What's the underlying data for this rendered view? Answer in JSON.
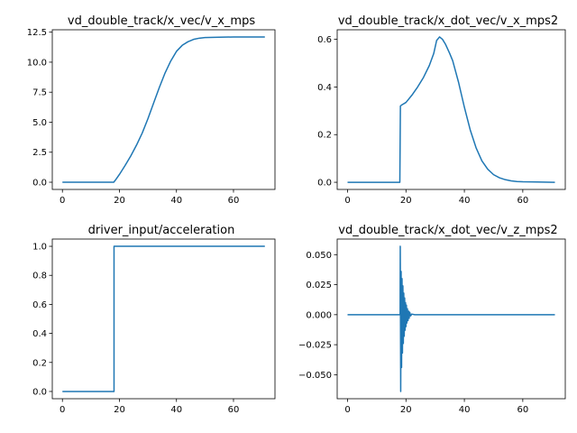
{
  "series_color": "#1f77b4",
  "chart_data": [
    {
      "type": "line",
      "title": "vd_double_track/x_vec/v_x_mps",
      "xlim": [
        -3.55,
        74.55
      ],
      "ylim": [
        -0.6,
        12.7
      ],
      "xticks": [
        0,
        20,
        40,
        60
      ],
      "xtick_labels": [
        "0",
        "20",
        "40",
        "60"
      ],
      "yticks": [
        0,
        2.5,
        5,
        7.5,
        10,
        12.5
      ],
      "ytick_labels": [
        "0.0",
        "2.5",
        "5.0",
        "7.5",
        "10.0",
        "12.5"
      ],
      "grid": false,
      "x": [
        0,
        18,
        18.5,
        20,
        22,
        24,
        26,
        28,
        30,
        32,
        34,
        36,
        38,
        40,
        42,
        44,
        46,
        48,
        50,
        55,
        60,
        65,
        71
      ],
      "values": [
        0,
        0,
        0.15,
        0.65,
        1.4,
        2.2,
        3.1,
        4.1,
        5.3,
        6.6,
        7.9,
        9.1,
        10.1,
        10.9,
        11.4,
        11.7,
        11.9,
        12.0,
        12.05,
        12.08,
        12.1,
        12.1,
        12.1
      ]
    },
    {
      "type": "line",
      "title": "vd_double_track/x_dot_vec/v_x_mps2",
      "xlim": [
        -3.55,
        74.55
      ],
      "ylim": [
        -0.03,
        0.64
      ],
      "xticks": [
        0,
        20,
        40,
        60
      ],
      "xtick_labels": [
        "0",
        "20",
        "40",
        "60"
      ],
      "yticks": [
        0,
        0.2,
        0.4,
        0.6
      ],
      "ytick_labels": [
        "0.0",
        "0.2",
        "0.4",
        "0.6"
      ],
      "grid": false,
      "x": [
        0,
        17.9,
        18.1,
        18.6,
        20,
        22,
        24,
        26,
        28,
        29.5,
        30.5,
        31.5,
        32.5,
        33.5,
        35,
        36,
        38,
        40,
        42,
        44,
        46,
        48,
        50,
        52,
        54,
        56,
        58,
        60,
        65,
        71
      ],
      "values": [
        0,
        0,
        0.32,
        0.325,
        0.335,
        0.365,
        0.4,
        0.44,
        0.49,
        0.54,
        0.595,
        0.61,
        0.6,
        0.58,
        0.54,
        0.51,
        0.42,
        0.315,
        0.22,
        0.145,
        0.09,
        0.055,
        0.032,
        0.019,
        0.011,
        0.006,
        0.003,
        0.002,
        0.001,
        0.0
      ]
    },
    {
      "type": "line",
      "title": "driver_input/acceleration",
      "xlim": [
        -3.55,
        74.55
      ],
      "ylim": [
        -0.05,
        1.05
      ],
      "xticks": [
        0,
        20,
        40,
        60
      ],
      "xtick_labels": [
        "0",
        "20",
        "40",
        "60"
      ],
      "yticks": [
        0,
        0.2,
        0.4,
        0.6,
        0.8,
        1.0
      ],
      "ytick_labels": [
        "0.0",
        "0.2",
        "0.4",
        "0.6",
        "0.8",
        "1.0"
      ],
      "grid": false,
      "x": [
        0,
        18.1,
        18.1,
        71
      ],
      "values": [
        0,
        0,
        1,
        1
      ]
    },
    {
      "type": "line",
      "title": "vd_double_track/x_dot_vec/v_z_mps2",
      "xlim": [
        -3.55,
        74.55
      ],
      "ylim": [
        -0.07,
        0.063
      ],
      "xticks": [
        0,
        20,
        40,
        60
      ],
      "xtick_labels": [
        "0",
        "20",
        "40",
        "60"
      ],
      "yticks": [
        -0.05,
        -0.025,
        0,
        0.025,
        0.05
      ],
      "ytick_labels": [
        "−0.050",
        "−0.025",
        "0.000",
        "0.025",
        "0.050"
      ],
      "grid": false,
      "x": [
        0,
        18.0,
        18.05,
        18.2,
        18.35,
        18.5,
        18.65,
        18.8,
        18.95,
        19.1,
        19.25,
        19.4,
        19.55,
        19.7,
        19.85,
        20.0,
        20.15,
        20.3,
        20.5,
        20.7,
        20.9,
        21.1,
        21.3,
        21.6,
        22,
        23,
        71
      ],
      "values": [
        0,
        0,
        0.057,
        -0.064,
        0.036,
        -0.044,
        0.03,
        -0.032,
        0.024,
        -0.024,
        0.018,
        -0.018,
        0.014,
        -0.013,
        0.01,
        -0.01,
        0.008,
        -0.007,
        0.005,
        -0.005,
        0.003,
        -0.003,
        0.002,
        -0.001,
        0.0005,
        0,
        0
      ]
    }
  ]
}
